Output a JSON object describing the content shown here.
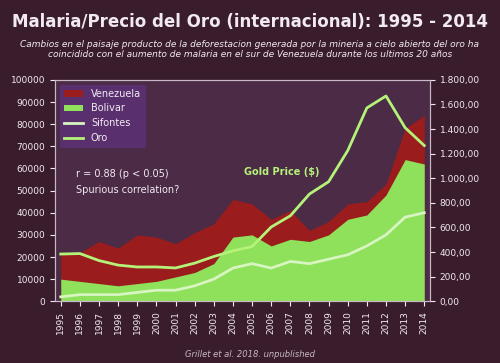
{
  "chart_data": {
    "type": "area",
    "title": "Malaria/Precio del Oro (internacional): 1995 - 2014",
    "subtitle": "Cambios en el paisaje producto de la deforestacion generada por la mineria a cielo abierto del oro ha coincidido con el aumento de malaria en el sur de Venezuela durante los ultimos 20 años",
    "annotations": [
      "r = 0.88 (p < 0.05)",
      "Spurious correlation?",
      "Gold Price ($)"
    ],
    "source": "Grillet et al. 2018. unpublished",
    "categories": [
      "1995",
      "1996",
      "1997",
      "1998",
      "1999",
      "2000",
      "2001",
      "2002",
      "2003",
      "2004",
      "2005",
      "2006",
      "2007",
      "2008",
      "2009",
      "2010",
      "2011",
      "2012",
      "2013",
      "2014"
    ],
    "series": [
      {
        "name": "Venezuela",
        "type": "area",
        "color": "#9b1c1c",
        "values": [
          21000,
          22000,
          27000,
          24000,
          30000,
          29000,
          26000,
          31000,
          35000,
          46000,
          44000,
          37000,
          41000,
          32000,
          36000,
          44000,
          45000,
          53000,
          78000,
          84000
        ]
      },
      {
        "name": "Bolivar",
        "type": "area",
        "color": "#8fe05a",
        "values": [
          10000,
          9000,
          8000,
          7000,
          8000,
          9000,
          11000,
          13000,
          17000,
          29000,
          30000,
          25000,
          28000,
          27000,
          30000,
          37000,
          39000,
          48000,
          64000,
          62000
        ]
      },
      {
        "name": "Sifontes",
        "type": "line",
        "color": "#d6f5c0",
        "values": [
          2000,
          3000,
          3000,
          3000,
          4000,
          5000,
          5000,
          7000,
          10000,
          15000,
          17000,
          15000,
          18000,
          17000,
          19000,
          21000,
          25000,
          30000,
          38000,
          40000
        ]
      },
      {
        "name": "Oro",
        "type": "line",
        "axis": "y2",
        "color": "#b4f27a",
        "values": [
          384,
          388,
          331,
          294,
          279,
          279,
          271,
          310,
          364,
          410,
          445,
          604,
          695,
          872,
          972,
          1225,
          1572,
          1669,
          1411,
          1266
        ]
      }
    ],
    "ylim": [
      0,
      100000
    ],
    "yticks": [
      0,
      10000,
      20000,
      30000,
      40000,
      50000,
      60000,
      70000,
      80000,
      90000,
      100000
    ],
    "y2lim": [
      0,
      1800
    ],
    "y2ticks": [
      {
        "value": 0,
        "label": "0,00"
      },
      {
        "value": 200,
        "label": "200,00"
      },
      {
        "value": 400,
        "label": "400,00"
      },
      {
        "value": 600,
        "label": "600,00"
      },
      {
        "value": 800,
        "label": "800,00"
      },
      {
        "value": 1000,
        "label": "1.000,00"
      },
      {
        "value": 1200,
        "label": "1.200,00"
      },
      {
        "value": 1400,
        "label": "1.400,00"
      },
      {
        "value": 1600,
        "label": "1.600,00"
      },
      {
        "value": 1800,
        "label": "1.800,00"
      }
    ],
    "legend": "upper left",
    "grid": false
  }
}
